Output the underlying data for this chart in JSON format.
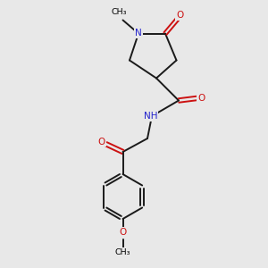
{
  "bg_color": "#e8e8e8",
  "atom_colors": {
    "N": "#2222cc",
    "O": "#cc1111",
    "H": "#888888"
  },
  "bond_color": "#1a1a1a",
  "lw": 1.4,
  "fs": 7.5,
  "fs_small": 6.8,
  "xlim": [
    0,
    10
  ],
  "ylim": [
    0,
    12
  ],
  "figsize": [
    3.0,
    3.0
  ],
  "dpi": 100
}
